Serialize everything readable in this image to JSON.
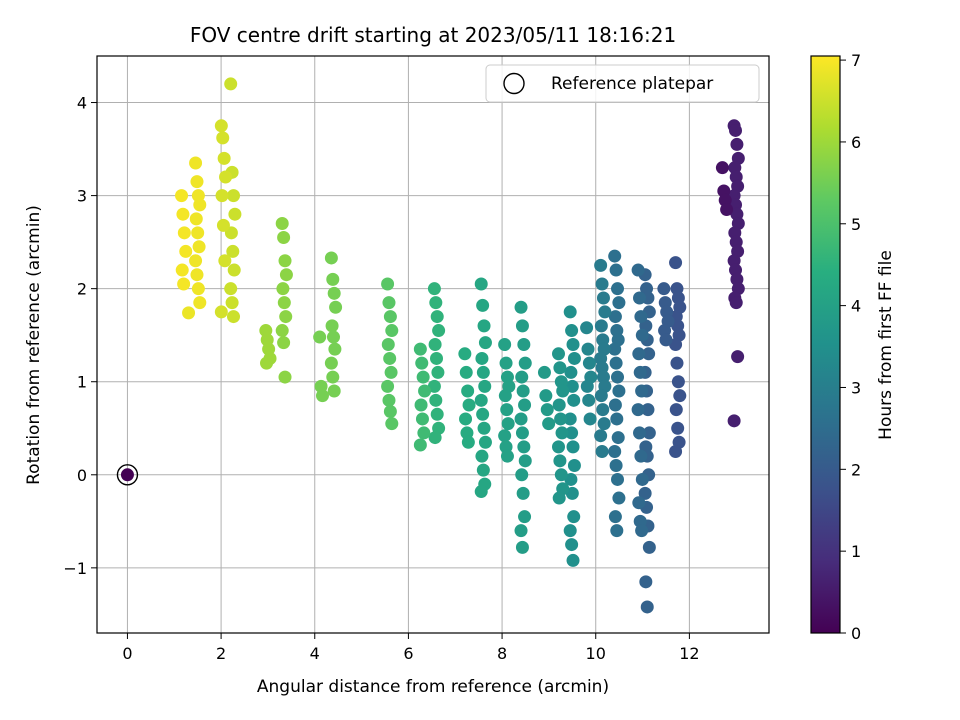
{
  "chart_data": {
    "type": "scatter",
    "title": "FOV centre drift starting at 2023/05/11 18:16:21",
    "xlabel": "Angular distance from reference (arcmin)",
    "ylabel": "Rotation from reference (arcmin)",
    "xlim": [
      -0.65,
      13.7
    ],
    "ylim": [
      -1.7,
      4.5
    ],
    "xticks": [
      0,
      2,
      4,
      6,
      8,
      10,
      12
    ],
    "yticks": [
      -1,
      0,
      1,
      2,
      3,
      4
    ],
    "grid": true,
    "legend": {
      "position": "top-right",
      "entries": [
        "Reference platepar"
      ]
    },
    "reference_point": {
      "x": 0,
      "y": 0,
      "hours": 0
    },
    "colorbar": {
      "label": "Hours from first FF file",
      "range": [
        0,
        7.05
      ],
      "ticks": [
        0,
        1,
        2,
        3,
        4,
        5,
        6,
        7
      ],
      "colormap": "viridis"
    },
    "clusters": [
      {
        "x": 13.0,
        "hours": 0.6,
        "y": [
          3.75,
          3.7,
          3.55,
          3.4,
          3.3,
          3.2,
          3.1,
          3.0,
          2.9,
          2.8,
          2.7,
          2.6,
          2.5,
          2.4,
          2.3,
          2.2,
          2.1,
          2.0,
          1.9,
          1.85,
          1.27,
          0.58
        ]
      },
      {
        "x": 12.75,
        "hours": 0.35,
        "y": [
          3.3,
          3.05,
          2.95,
          2.85
        ]
      },
      {
        "x": 11.75,
        "hours": 1.8,
        "y": [
          2.28,
          2.0,
          1.9,
          1.8,
          1.7,
          1.6,
          1.5,
          1.4,
          1.2,
          1.0,
          0.85,
          0.7,
          0.5,
          0.35,
          0.25
        ]
      },
      {
        "x": 11.5,
        "hours": 2.0,
        "y": [
          2.0,
          1.85,
          1.75,
          1.65,
          1.55,
          1.45
        ]
      },
      {
        "x": 11.1,
        "hours": 2.2,
        "y": [
          2.15,
          2.0,
          1.9,
          1.75,
          1.6,
          1.45,
          1.3,
          1.1,
          0.9,
          0.7,
          0.45,
          0.3,
          0.2,
          0.0,
          -0.2,
          -0.35,
          -0.55,
          -0.78,
          -1.15,
          -1.42
        ]
      },
      {
        "x": 10.95,
        "hours": 2.4,
        "y": [
          2.2,
          1.9,
          1.7,
          1.5,
          1.3,
          1.1,
          0.9,
          0.7,
          0.45,
          0.2,
          -0.05,
          -0.3,
          -0.5,
          -0.6
        ]
      },
      {
        "x": 10.45,
        "hours": 2.6,
        "y": [
          2.35,
          2.2,
          2.0,
          1.85,
          1.7,
          1.55,
          1.45,
          1.35,
          1.2,
          1.05,
          0.9,
          0.75,
          0.6,
          0.4,
          0.25,
          0.1,
          -0.05,
          -0.25,
          -0.45,
          -0.6
        ]
      },
      {
        "x": 10.15,
        "hours": 2.9,
        "y": [
          2.25,
          2.05,
          1.9,
          1.75,
          1.6,
          1.45,
          1.35,
          1.25,
          1.15,
          1.05,
          0.95,
          0.85,
          0.7,
          0.55,
          0.42,
          0.25
        ]
      },
      {
        "x": 9.85,
        "hours": 3.2,
        "y": [
          1.58,
          1.35,
          1.2,
          1.05,
          0.95,
          0.8,
          0.6
        ]
      },
      {
        "x": 9.5,
        "hours": 3.5,
        "y": [
          1.75,
          1.55,
          1.4,
          1.25,
          1.1,
          0.95,
          0.8,
          0.6,
          0.45,
          0.3,
          0.1,
          -0.05,
          -0.2,
          -0.45,
          -0.6,
          -0.75,
          -0.92
        ]
      },
      {
        "x": 9.25,
        "hours": 3.65,
        "y": [
          1.3,
          1.15,
          1.0,
          0.9,
          0.75,
          0.6,
          0.45,
          0.3,
          0.15,
          0.0,
          -0.15,
          -0.25
        ]
      },
      {
        "x": 8.95,
        "hours": 3.8,
        "y": [
          1.1,
          0.85,
          0.7,
          0.55
        ]
      },
      {
        "x": 8.45,
        "hours": 3.9,
        "y": [
          1.8,
          1.6,
          1.4,
          1.2,
          1.05,
          0.9,
          0.75,
          0.6,
          0.45,
          0.3,
          0.15,
          0.0,
          -0.2,
          -0.45,
          -0.6,
          -0.78
        ]
      },
      {
        "x": 8.1,
        "hours": 4.0,
        "y": [
          1.4,
          1.2,
          1.05,
          0.95,
          0.85,
          0.7,
          0.55,
          0.42,
          0.3,
          0.2
        ]
      },
      {
        "x": 7.6,
        "hours": 4.15,
        "y": [
          2.05,
          1.82,
          1.6,
          1.42,
          1.25,
          1.1,
          0.95,
          0.8,
          0.65,
          0.5,
          0.35,
          0.2,
          0.05,
          -0.1,
          -0.18
        ]
      },
      {
        "x": 7.25,
        "hours": 4.3,
        "y": [
          1.3,
          1.1,
          0.9,
          0.75,
          0.6,
          0.45,
          0.35
        ]
      },
      {
        "x": 6.6,
        "hours": 4.55,
        "y": [
          2.0,
          1.85,
          1.7,
          1.55,
          1.4,
          1.25,
          1.1,
          0.95,
          0.8,
          0.65,
          0.5,
          0.4
        ]
      },
      {
        "x": 6.3,
        "hours": 4.8,
        "y": [
          1.35,
          1.2,
          1.05,
          0.9,
          0.75,
          0.6,
          0.45,
          0.32
        ]
      },
      {
        "x": 5.6,
        "hours": 5.2,
        "y": [
          2.05,
          1.85,
          1.7,
          1.55,
          1.4,
          1.25,
          1.1,
          0.95,
          0.8,
          0.68,
          0.55
        ]
      },
      {
        "x": 4.4,
        "hours": 5.55,
        "y": [
          2.33,
          2.1,
          1.95,
          1.8,
          1.6,
          1.48,
          1.35,
          1.2,
          1.05,
          0.9
        ]
      },
      {
        "x": 4.15,
        "hours": 5.55,
        "y": [
          1.48,
          0.95,
          0.85
        ]
      },
      {
        "x": 3.35,
        "hours": 5.8,
        "y": [
          2.7,
          2.55,
          2.3,
          2.15,
          2.0,
          1.85,
          1.7,
          1.55,
          1.42,
          1.05
        ]
      },
      {
        "x": 3.0,
        "hours": 6.0,
        "y": [
          1.55,
          1.45,
          1.35,
          1.25,
          1.2
        ]
      },
      {
        "x": 2.25,
        "hours": 6.5,
        "y": [
          4.2,
          3.25,
          3.0,
          2.8,
          2.6,
          2.4,
          2.2,
          2.0,
          1.85,
          1.7
        ]
      },
      {
        "x": 2.05,
        "hours": 6.6,
        "y": [
          3.75,
          3.62,
          3.4,
          3.2,
          3.0,
          2.68,
          2.3,
          1.75
        ]
      },
      {
        "x": 1.5,
        "hours": 6.9,
        "y": [
          3.35,
          3.15,
          3.0,
          2.9,
          2.75,
          2.6,
          2.45,
          2.3,
          2.15,
          2.0,
          1.85
        ]
      },
      {
        "x": 1.2,
        "hours": 6.95,
        "y": [
          3.0,
          2.8,
          2.6,
          2.4,
          2.2,
          2.05
        ]
      },
      {
        "x": 1.35,
        "hours": 6.85,
        "y": [
          1.74
        ]
      }
    ]
  }
}
